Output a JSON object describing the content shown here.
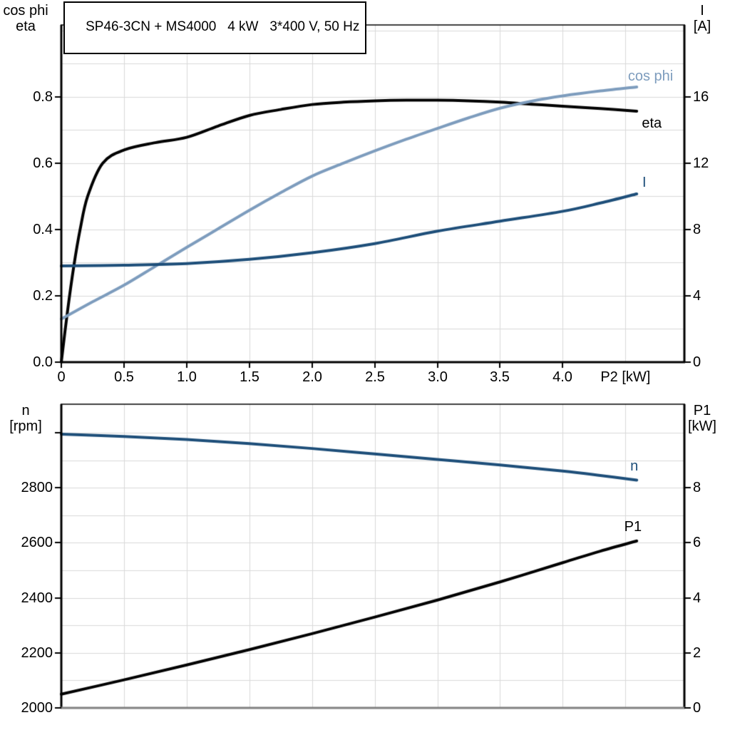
{
  "title": "SP46-3CN + MS4000   4 kW   3*400 V, 50 Hz",
  "colors": {
    "black": "#000000",
    "light_blue": "#7d9cbd",
    "dark_blue": "#1d4e79",
    "grid": "#d9d9d9",
    "axis_gray": "#808080"
  },
  "chart_data": [
    {
      "type": "line",
      "name": "electrical-curves",
      "x_axis": {
        "label": "P2 [kW]",
        "label_at": 4.5,
        "min": 0,
        "max": 4.97,
        "grid_step": 0.5,
        "ticks": [
          0,
          0.5,
          1,
          1.5,
          2,
          2.5,
          3,
          3.5,
          4
        ],
        "tick_labels": [
          "0",
          "0.5",
          "1.0",
          "1.5",
          "2.0",
          "2.5",
          "3.0",
          "3.5",
          "4.0"
        ]
      },
      "left_axis": {
        "title_lines": [
          "cos phi",
          "eta"
        ],
        "min": 0,
        "max": 1.017,
        "grid_step": 0.1,
        "grid_max": 1.0,
        "ticks": [
          0,
          0.2,
          0.4,
          0.6,
          0.8
        ],
        "tick_labels": [
          "0.0",
          "0.2",
          "0.4",
          "0.6",
          "0.8"
        ]
      },
      "right_axis": {
        "title_lines": [
          "I",
          "[A]"
        ],
        "min": 0,
        "max": 20.34,
        "ticks": [
          0,
          4,
          8,
          12,
          16
        ],
        "tick_labels": [
          "0",
          "4",
          "8",
          "12",
          "16"
        ]
      },
      "series": [
        {
          "name": "eta",
          "label": "eta",
          "axis": "left",
          "color": "black",
          "x": [
            0,
            0.05,
            0.1,
            0.15,
            0.21,
            0.33,
            0.5,
            0.75,
            1.0,
            1.25,
            1.5,
            1.75,
            2.0,
            2.25,
            2.5,
            2.75,
            3.0,
            3.25,
            3.5,
            3.75,
            4.0,
            4.3,
            4.59
          ],
          "y": [
            0,
            0.155,
            0.29,
            0.4,
            0.5,
            0.6,
            0.64,
            0.662,
            0.678,
            0.712,
            0.744,
            0.762,
            0.777,
            0.784,
            0.788,
            0.79,
            0.79,
            0.788,
            0.784,
            0.778,
            0.772,
            0.765,
            0.757
          ],
          "label_at": {
            "x": 4.71,
            "v": 0.72
          }
        },
        {
          "name": "cos phi",
          "label": "cos phi",
          "axis": "left",
          "color": "light_blue",
          "x": [
            0,
            0.25,
            0.5,
            0.75,
            1.0,
            1.25,
            1.5,
            1.75,
            2.0,
            2.25,
            2.5,
            2.75,
            3.0,
            3.25,
            3.5,
            3.75,
            4.0,
            4.3,
            4.59
          ],
          "y": [
            0.13,
            0.182,
            0.232,
            0.289,
            0.346,
            0.402,
            0.458,
            0.511,
            0.561,
            0.6,
            0.637,
            0.672,
            0.705,
            0.737,
            0.766,
            0.787,
            0.803,
            0.818,
            0.83
          ],
          "label_at": {
            "x": 4.7,
            "v": 0.862
          }
        },
        {
          "name": "I",
          "label": "I",
          "axis": "right",
          "color": "dark_blue",
          "x": [
            0,
            0.5,
            1.0,
            1.5,
            2.0,
            2.5,
            3.0,
            3.5,
            4.0,
            4.3,
            4.59
          ],
          "y": [
            5.8,
            5.85,
            5.95,
            6.2,
            6.6,
            7.15,
            7.9,
            8.5,
            9.1,
            9.6,
            10.15
          ],
          "label_at": {
            "x": 4.65,
            "v": 10.84
          }
        }
      ]
    },
    {
      "type": "line",
      "name": "speed-power-curves",
      "x_axis": {
        "label": "",
        "label_at": 4.5,
        "min": 0,
        "max": 4.97,
        "grid_step": 0.5,
        "ticks": [],
        "tick_labels": []
      },
      "left_axis": {
        "title_lines": [
          "n",
          "[rpm]"
        ],
        "min": 2000,
        "max": 3104,
        "grid_step": 100,
        "grid_max": 3000,
        "ticks": [
          2000,
          2200,
          2400,
          2600,
          2800,
          3000
        ],
        "tick_labels": [
          "2000",
          "2200",
          "2400",
          "2600",
          "2800",
          ""
        ]
      },
      "right_axis": {
        "title_lines": [
          "P1",
          "[kW]"
        ],
        "min": 0,
        "max": 11.04,
        "ticks": [
          0,
          2,
          4,
          6,
          8
        ],
        "tick_labels": [
          "0",
          "2",
          "4",
          "6",
          "8"
        ]
      },
      "series": [
        {
          "name": "n",
          "label": "n",
          "axis": "left",
          "color": "dark_blue",
          "x": [
            0,
            0.5,
            1.0,
            1.5,
            2.0,
            2.5,
            3.0,
            3.5,
            4.0,
            4.3,
            4.59
          ],
          "y": [
            2995,
            2987,
            2976,
            2961,
            2943,
            2923,
            2903,
            2883,
            2861,
            2845,
            2828
          ],
          "label_at": {
            "x": 4.57,
            "v": 2878
          }
        },
        {
          "name": "P1",
          "label": "P1",
          "axis": "right",
          "color": "black",
          "x": [
            0,
            0.5,
            1.0,
            1.5,
            2.0,
            2.5,
            3.0,
            3.5,
            4.0,
            4.3,
            4.59
          ],
          "y": [
            0.5,
            1.02,
            1.56,
            2.12,
            2.7,
            3.3,
            3.92,
            4.58,
            5.28,
            5.7,
            6.07
          ],
          "label_at": {
            "x": 4.56,
            "v": 6.58
          }
        }
      ]
    }
  ]
}
